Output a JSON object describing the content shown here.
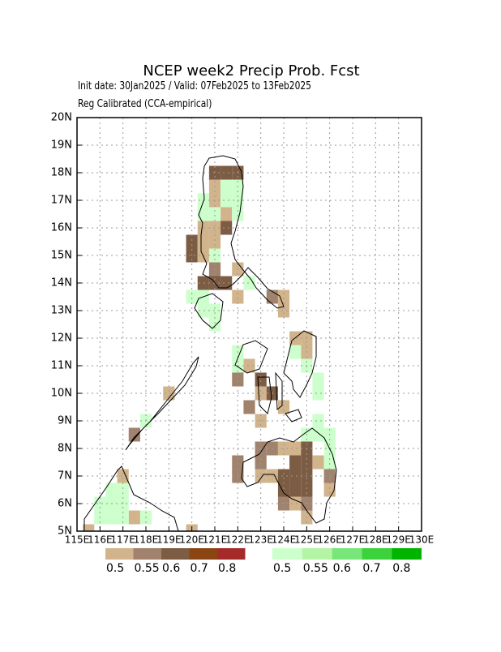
{
  "chart_data": {
    "type": "map",
    "title": "NCEP week2 Precip Prob. Fcst",
    "subtitle": "Init date: 30Jan2025 / Valid: 07Feb2025 to 13Feb2025",
    "note": "Reg Calibrated (CCA-empirical)",
    "xlim": [
      115,
      130
    ],
    "ylim": [
      5,
      20
    ],
    "xticks": [
      {
        "value": 115,
        "label": "115E"
      },
      {
        "value": 116,
        "label": "116E"
      },
      {
        "value": 117,
        "label": "117E"
      },
      {
        "value": 118,
        "label": "118E"
      },
      {
        "value": 119,
        "label": "119E"
      },
      {
        "value": 120,
        "label": "120E"
      },
      {
        "value": 121,
        "label": "121E"
      },
      {
        "value": 122,
        "label": "122E"
      },
      {
        "value": 123,
        "label": "123E"
      },
      {
        "value": 124,
        "label": "124E"
      },
      {
        "value": 125,
        "label": "125E"
      },
      {
        "value": 126,
        "label": "126E"
      },
      {
        "value": 127,
        "label": "127E"
      },
      {
        "value": 128,
        "label": "128E"
      },
      {
        "value": 129,
        "label": "129E"
      },
      {
        "value": 130,
        "label": "130E"
      }
    ],
    "yticks": [
      {
        "value": 5,
        "label": "5N"
      },
      {
        "value": 6,
        "label": "6N"
      },
      {
        "value": 7,
        "label": "7N"
      },
      {
        "value": 8,
        "label": "8N"
      },
      {
        "value": 9,
        "label": "9N"
      },
      {
        "value": 10,
        "label": "10N"
      },
      {
        "value": 11,
        "label": "11N"
      },
      {
        "value": 12,
        "label": "12N"
      },
      {
        "value": 13,
        "label": "13N"
      },
      {
        "value": 14,
        "label": "14N"
      },
      {
        "value": 15,
        "label": "15N"
      },
      {
        "value": 16,
        "label": "16N"
      },
      {
        "value": 17,
        "label": "17N"
      },
      {
        "value": 18,
        "label": "18N"
      },
      {
        "value": 19,
        "label": "19N"
      },
      {
        "value": 20,
        "label": "20N"
      }
    ],
    "grid": true,
    "legends": [
      {
        "levels": [
          0.5,
          0.55,
          0.6,
          0.7,
          0.8
        ],
        "colors": [
          "#d2b48c",
          "#a0826d",
          "#7d5c44",
          "#8b4513",
          "#a52a2a"
        ]
      },
      {
        "levels": [
          0.5,
          0.55,
          0.6,
          0.7,
          0.8
        ],
        "colors": [
          "#ccffcc",
          "#b4f5a5",
          "#78e678",
          "#3cd23c",
          "#00b400"
        ]
      }
    ],
    "dry_cells": [
      [
        121.0,
        18.0,
        0.6
      ],
      [
        121.5,
        18.0,
        0.6
      ],
      [
        122.0,
        18.0,
        0.6
      ],
      [
        121.0,
        17.5,
        0.5
      ],
      [
        121.0,
        17.0,
        0.5
      ],
      [
        121.5,
        16.5,
        0.5
      ],
      [
        120.5,
        16.0,
        0.5
      ],
      [
        121.0,
        16.0,
        0.5
      ],
      [
        121.5,
        16.0,
        0.6
      ],
      [
        120.0,
        15.5,
        0.6
      ],
      [
        120.5,
        15.5,
        0.5
      ],
      [
        121.0,
        15.5,
        0.5
      ],
      [
        120.0,
        15.0,
        0.6
      ],
      [
        120.5,
        15.0,
        0.5
      ],
      [
        121.0,
        14.5,
        0.55
      ],
      [
        122.0,
        14.5,
        0.5
      ],
      [
        120.5,
        14.0,
        0.6
      ],
      [
        121.0,
        14.0,
        0.6
      ],
      [
        121.5,
        14.0,
        0.6
      ],
      [
        122.0,
        13.5,
        0.5
      ],
      [
        123.5,
        13.5,
        0.55
      ],
      [
        124.0,
        13.5,
        0.5
      ],
      [
        124.0,
        13.0,
        0.5
      ],
      [
        124.5,
        12.0,
        0.5
      ],
      [
        125.0,
        12.0,
        0.5
      ],
      [
        125.0,
        11.5,
        0.5
      ],
      [
        122.5,
        11.0,
        0.5
      ],
      [
        122.0,
        10.5,
        0.55
      ],
      [
        123.0,
        10.5,
        0.6
      ],
      [
        123.0,
        10.0,
        0.5
      ],
      [
        123.5,
        10.0,
        0.6
      ],
      [
        122.5,
        9.5,
        0.55
      ],
      [
        124.0,
        9.5,
        0.5
      ],
      [
        123.0,
        9.0,
        0.5
      ],
      [
        123.0,
        8.0,
        0.55
      ],
      [
        123.5,
        8.0,
        0.55
      ],
      [
        124.0,
        8.0,
        0.5
      ],
      [
        124.5,
        8.0,
        0.5
      ],
      [
        125.0,
        8.0,
        0.6
      ],
      [
        122.0,
        7.5,
        0.55
      ],
      [
        123.0,
        7.5,
        0.55
      ],
      [
        124.5,
        7.5,
        0.6
      ],
      [
        125.0,
        7.5,
        0.6
      ],
      [
        125.5,
        7.5,
        0.5
      ],
      [
        122.0,
        7.0,
        0.55
      ],
      [
        123.0,
        7.0,
        0.5
      ],
      [
        123.5,
        7.0,
        0.5
      ],
      [
        124.0,
        7.0,
        0.6
      ],
      [
        124.5,
        7.0,
        0.6
      ],
      [
        125.0,
        7.0,
        0.6
      ],
      [
        126.0,
        7.0,
        0.55
      ],
      [
        124.0,
        6.5,
        0.6
      ],
      [
        124.5,
        6.5,
        0.6
      ],
      [
        125.0,
        6.5,
        0.6
      ],
      [
        126.0,
        6.5,
        0.5
      ],
      [
        124.0,
        6.0,
        0.55
      ],
      [
        124.5,
        6.0,
        0.5
      ],
      [
        125.0,
        6.0,
        0.55
      ],
      [
        125.0,
        5.5,
        0.5
      ],
      [
        119.0,
        10.0,
        0.5
      ],
      [
        117.5,
        8.5,
        0.55
      ],
      [
        117.0,
        7.0,
        0.5
      ],
      [
        117.5,
        5.5,
        0.5
      ],
      [
        115.5,
        5.0,
        0.5
      ],
      [
        120.0,
        5.0,
        0.5
      ]
    ],
    "wet_cells": [
      [
        121.5,
        17.5,
        0.5
      ],
      [
        122.0,
        17.5,
        0.5
      ],
      [
        120.5,
        17.0,
        0.5
      ],
      [
        121.5,
        17.0,
        0.5
      ],
      [
        122.0,
        17.0,
        0.5
      ],
      [
        120.5,
        16.5,
        0.5
      ],
      [
        121.0,
        16.5,
        0.5
      ],
      [
        122.0,
        16.5,
        0.5
      ],
      [
        121.0,
        15.0,
        0.5
      ],
      [
        122.5,
        14.0,
        0.5
      ],
      [
        120.0,
        13.5,
        0.5
      ],
      [
        120.5,
        13.5,
        0.5
      ],
      [
        120.5,
        13.0,
        0.5
      ],
      [
        121.0,
        13.0,
        0.5
      ],
      [
        121.0,
        12.5,
        0.5
      ],
      [
        122.0,
        11.5,
        0.5
      ],
      [
        124.5,
        11.5,
        0.5
      ],
      [
        122.0,
        11.0,
        0.5
      ],
      [
        125.0,
        11.0,
        0.5
      ],
      [
        125.5,
        10.5,
        0.5
      ],
      [
        125.5,
        10.0,
        0.5
      ],
      [
        125.5,
        9.0,
        0.5
      ],
      [
        125.0,
        8.5,
        0.5
      ],
      [
        125.5,
        8.5,
        0.5
      ],
      [
        126.0,
        8.5,
        0.5
      ],
      [
        126.0,
        8.0,
        0.5
      ],
      [
        126.0,
        7.5,
        0.5
      ],
      [
        118.0,
        9.0,
        0.5
      ],
      [
        116.5,
        6.5,
        0.5
      ],
      [
        117.0,
        6.5,
        0.5
      ],
      [
        116.0,
        6.0,
        0.5
      ],
      [
        116.5,
        6.0,
        0.5
      ],
      [
        117.0,
        6.0,
        0.5
      ],
      [
        116.0,
        5.5,
        0.5
      ],
      [
        116.5,
        5.5,
        0.5
      ],
      [
        117.0,
        5.5,
        0.5
      ],
      [
        118.0,
        5.5,
        0.5
      ]
    ]
  }
}
